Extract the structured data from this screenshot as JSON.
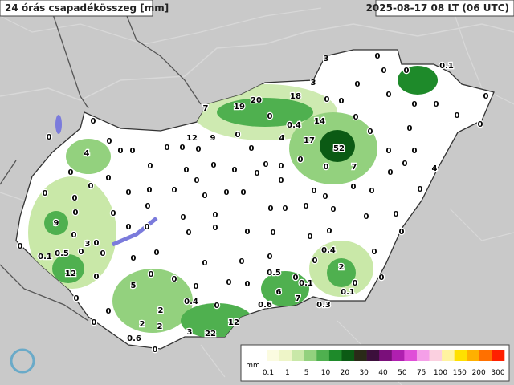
{
  "title": "24 órás csapadékösszeg [mm]",
  "timestamp": "2025-08-17 08 LT (06 UTC)",
  "stations": [
    3,
    0,
    0,
    0,
    0.1,
    3,
    0,
    18,
    0,
    0,
    0,
    0,
    0,
    20,
    19,
    7,
    0,
    0.4,
    14,
    0,
    0,
    0,
    0,
    0,
    0,
    12,
    9,
    0,
    4,
    17,
    52,
    0,
    0,
    4,
    0,
    0,
    0,
    0,
    0,
    0,
    0,
    0,
    0,
    0,
    0,
    0,
    0,
    0,
    0,
    0,
    0,
    0,
    0,
    7,
    0,
    4,
    0,
    0,
    0,
    0,
    0,
    0,
    0,
    0,
    0,
    0,
    0,
    0,
    0,
    0,
    0,
    0,
    0,
    0,
    9,
    0,
    0,
    0,
    0,
    0,
    0,
    0,
    0,
    0,
    0,
    0,
    0,
    0,
    3,
    0,
    0,
    0,
    0,
    0,
    0,
    0,
    0,
    0,
    0,
    0.1,
    0.5,
    0,
    0,
    0,
    0,
    0,
    0,
    0,
    0.4,
    0,
    0,
    2,
    12,
    0,
    0,
    0,
    0.5,
    0,
    0,
    0,
    5,
    0,
    0,
    0,
    0.1,
    0,
    0.1,
    6,
    0.4,
    7,
    0,
    2,
    0,
    0.6,
    0.3,
    0,
    2,
    2,
    12,
    3,
    22,
    0.6,
    0
  ],
  "legend": {
    "unit": "mm",
    "ticks": [
      0.1,
      1,
      5,
      10,
      20,
      30,
      40,
      50,
      75,
      100,
      150,
      200,
      300
    ],
    "colors": [
      "#fbfbe0",
      "#eef5c8",
      "#c9e8a8",
      "#93d17e",
      "#4fb04f",
      "#1e8a2a",
      "#0b5a14",
      "#2a2a18",
      "#3c0f3c",
      "#7a0f7a",
      "#b01fb0",
      "#e04fd8",
      "#f59fe8",
      "#fbd0e0",
      "#fff3a0",
      "#ffe000",
      "#ffb000",
      "#ff7000",
      "#ff2000"
    ]
  }
}
